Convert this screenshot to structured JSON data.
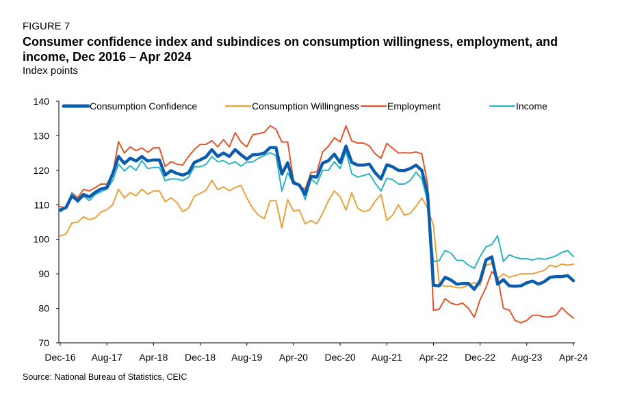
{
  "figure_label": "FIGURE 7",
  "title": "Consumer confidence index and subindices on consumption willingness, employment, and income, Dec 2016 – Apr 2024",
  "unit_label": "Index points",
  "source": "Source: National Bureau of Statistics, CEIC",
  "colors": {
    "confidence": "#0b5cad",
    "willingness": "#e8a13a",
    "employment": "#e0552a",
    "income": "#2ab3c4"
  },
  "chart_data": {
    "type": "line",
    "title": "Consumer confidence index and subindices on consumption willingness, employment, and income, Dec 2016 – Apr 2024",
    "ylabel": "Index points",
    "ylim": [
      70,
      140
    ],
    "yticks": [
      "70",
      "80",
      "90",
      "100",
      "110",
      "120",
      "130",
      "140"
    ],
    "x_tick_labels": [
      "Dec-16",
      "Aug-17",
      "Apr-18",
      "Dec-18",
      "Aug-19",
      "Apr-20",
      "Dec-20",
      "Aug-21",
      "Apr-22",
      "Dec-22",
      "Aug-23",
      "Apr-24"
    ],
    "x_tick_positions": [
      0,
      8,
      16,
      24,
      32,
      40,
      48,
      56,
      64,
      72,
      80,
      88
    ],
    "legend_position": "top",
    "series": [
      {
        "name": "Consumption Confidence",
        "key": "confidence",
        "values": [
          108.5,
          109.2,
          112.6,
          111.2,
          113.0,
          112.3,
          113.6,
          114.6,
          115.0,
          119.0,
          124.0,
          122.0,
          123.5,
          122.7,
          124.0,
          122.7,
          123.0,
          123.0,
          118.6,
          119.9,
          119.1,
          118.6,
          119.3,
          122.3,
          123.0,
          123.9,
          126.0,
          124.0,
          125.0,
          124.0,
          126.0,
          124.5,
          123.2,
          124.5,
          124.6,
          125.0,
          126.6,
          126.6,
          118.9,
          122.2,
          116.4,
          115.7,
          113.0,
          118.2,
          118.0,
          122.1,
          122.8,
          124.7,
          122.2,
          127.0,
          122.3,
          121.5,
          121.5,
          121.8,
          119.3,
          117.5,
          121.6,
          121.0,
          120.0,
          119.9,
          120.5,
          121.5,
          120.0,
          113.2,
          86.7,
          86.5,
          89.0,
          88.2,
          87.0,
          87.2,
          87.2,
          85.5,
          88.0,
          94.0,
          94.9,
          87.0,
          88.3,
          86.5,
          86.4,
          86.5,
          87.4,
          87.9,
          87.0,
          87.7,
          89.0,
          89.2,
          89.2,
          89.5,
          88.0
        ]
      },
      {
        "name": "Consumption Willingness",
        "key": "willingness",
        "values": [
          101.0,
          101.5,
          104.7,
          105.0,
          106.5,
          105.7,
          106.2,
          107.9,
          108.6,
          110.0,
          114.5,
          112.0,
          113.5,
          112.6,
          114.5,
          113.1,
          114.0,
          114.0,
          110.9,
          112.0,
          110.7,
          108.0,
          109.0,
          112.5,
          113.3,
          114.2,
          117.1,
          114.4,
          115.2,
          114.1,
          115.0,
          115.6,
          112.0,
          109.0,
          107.0,
          106.0,
          111.2,
          111.2,
          103.3,
          111.5,
          108.2,
          108.5,
          104.5,
          105.4,
          104.5,
          107.5,
          111.2,
          114.0,
          112.3,
          108.5,
          113.5,
          109.0,
          108.0,
          108.5,
          111.0,
          113.0,
          105.5,
          107.0,
          110.0,
          107.0,
          107.5,
          109.5,
          112.0,
          109.0,
          104.0,
          87.0,
          86.4,
          86.4,
          86.0,
          86.0,
          86.8,
          87.5,
          86.6,
          92.5,
          93.0,
          88.5,
          90.0,
          89.0,
          89.5,
          90.0,
          90.0,
          90.0,
          90.5,
          91.0,
          92.5,
          92.0,
          92.8,
          92.5,
          92.8
        ]
      },
      {
        "name": "Employment",
        "key": "employment",
        "values": [
          109.5,
          109.0,
          113.5,
          112.0,
          114.5,
          114.0,
          115.0,
          116.0,
          116.0,
          119.0,
          128.3,
          125.0,
          126.8,
          125.7,
          126.5,
          125.2,
          126.5,
          126.5,
          121.1,
          122.5,
          121.8,
          121.5,
          124.0,
          126.0,
          127.5,
          127.5,
          128.6,
          126.8,
          128.9,
          126.8,
          130.9,
          128.2,
          126.8,
          130.3,
          130.6,
          131.0,
          132.9,
          131.9,
          128.2,
          128.2,
          117.0,
          115.5,
          114.5,
          119.4,
          119.5,
          125.3,
          127.0,
          129.4,
          128.2,
          132.9,
          128.5,
          127.9,
          127.9,
          127.1,
          124.8,
          123.5,
          127.8,
          126.4,
          125.0,
          125.1,
          125.0,
          125.3,
          124.8,
          116.0,
          79.4,
          79.8,
          82.8,
          81.5,
          81.0,
          81.5,
          80.0,
          77.4,
          82.5,
          86.0,
          90.6,
          89.0,
          80.0,
          79.5,
          76.5,
          75.8,
          76.5,
          78.0,
          78.0,
          77.5,
          77.5,
          78.0,
          80.2,
          78.5,
          77.2
        ]
      },
      {
        "name": "Income",
        "key": "income",
        "values": [
          108.0,
          109.2,
          113.4,
          110.7,
          112.5,
          111.2,
          113.0,
          113.8,
          114.5,
          117.0,
          121.8,
          119.8,
          121.3,
          120.0,
          122.8,
          120.5,
          120.8,
          120.8,
          117.0,
          117.5,
          117.5,
          117.0,
          118.0,
          121.0,
          121.0,
          121.7,
          124.0,
          122.5,
          122.8,
          121.8,
          122.5,
          121.2,
          122.4,
          122.4,
          123.5,
          124.3,
          125.1,
          124.3,
          114.0,
          119.3,
          116.0,
          116.0,
          111.5,
          117.5,
          116.0,
          120.0,
          120.0,
          122.5,
          120.5,
          125.5,
          119.0,
          118.0,
          118.5,
          119.0,
          116.3,
          114.0,
          117.7,
          117.3,
          116.0,
          116.0,
          117.0,
          119.5,
          117.5,
          111.0,
          93.5,
          93.9,
          96.8,
          96.0,
          93.9,
          93.9,
          92.5,
          91.6,
          95.0,
          97.8,
          98.5,
          101.0,
          93.6,
          95.5,
          94.8,
          94.4,
          94.4,
          94.0,
          94.5,
          94.2,
          94.6,
          95.2,
          96.2,
          96.8,
          95.0
        ]
      }
    ]
  }
}
